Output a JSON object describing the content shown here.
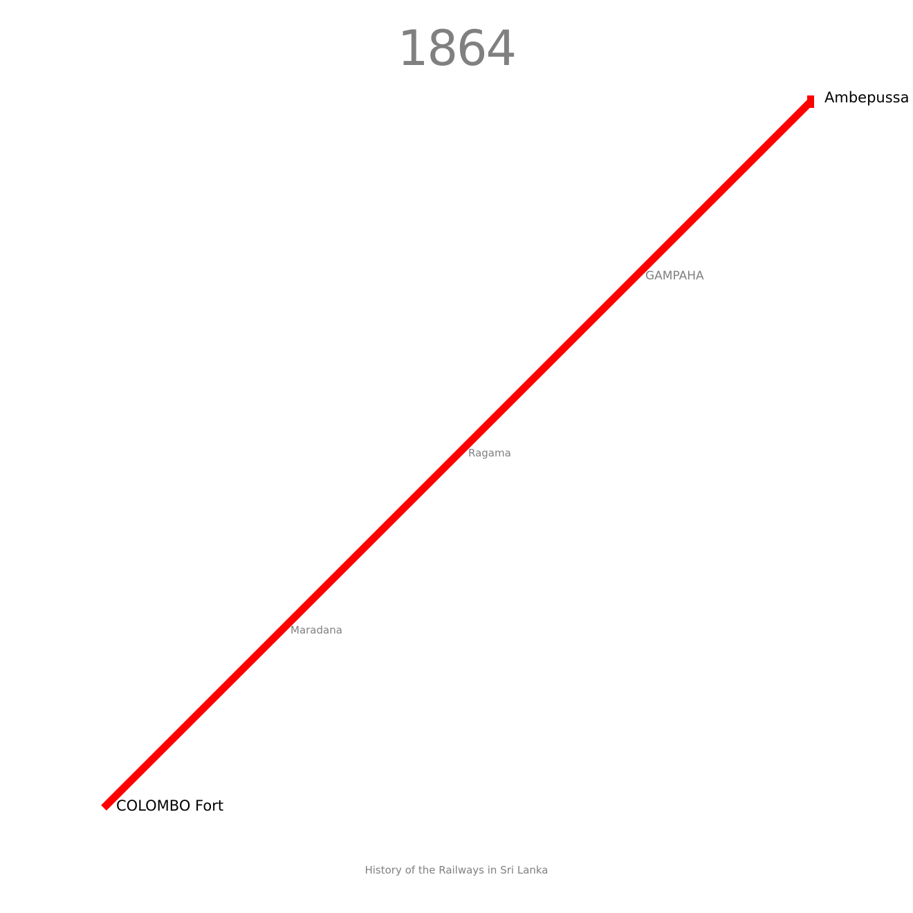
{
  "title": "1864",
  "footer": "History of the Railways in Sri Lanka",
  "line": {
    "color": "#ff0000",
    "stations": [
      {
        "name": "COLOMBO Fort",
        "kind": "terminus"
      },
      {
        "name": "Maradana",
        "kind": "minor"
      },
      {
        "name": "Ragama",
        "kind": "minor"
      },
      {
        "name": "GAMPAHA",
        "kind": "town"
      },
      {
        "name": "Ambepussa",
        "kind": "terminus"
      }
    ]
  },
  "colors": {
    "title": "#808080",
    "footer": "#808080",
    "terminus_label": "#000000",
    "minor_label": "#808080",
    "background": "#ffffff"
  }
}
